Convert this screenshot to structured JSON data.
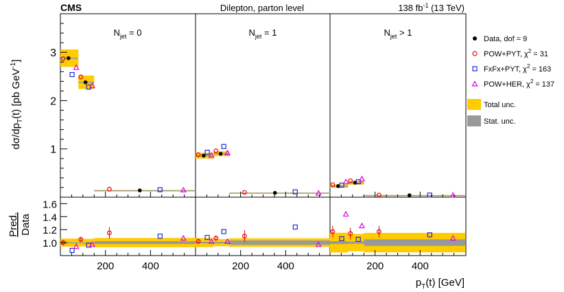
{
  "header": {
    "experiment": "CMS",
    "center": "Dilepton, parton level",
    "lumi_value": "138 fb",
    "lumi_exp": "-1",
    "energy": " (13 TeV)"
  },
  "axes": {
    "top_ylabel": "dσ/dp",
    "top_ylabel_sub": "T",
    "top_ylabel_mid": "(t) [pb GeV",
    "top_ylabel_sup": "-1",
    "top_ylabel_end": "]",
    "ratio_ylabel_num": "Pred.",
    "ratio_ylabel_den": "Data",
    "xlabel": "p",
    "xlabel_sub": "T",
    "xlabel_end": "(t) [GeV]"
  },
  "legend": {
    "data": "Data, dof = 9",
    "pow_pyt": "POW+PYT, χ",
    "pow_pyt_val": " = 31",
    "fxfx": "FxFx+PYT, χ",
    "fxfx_val": " = 163",
    "pow_her": "POW+HER, χ",
    "pow_her_val": " = 137",
    "chi_sup": "2",
    "total": "Total unc.",
    "stat": "Stat. unc."
  },
  "colors": {
    "total_unc": "#ffcc00",
    "stat_unc": "#999999",
    "pow_pyt": "#e8000b",
    "fxfx": "#1f2bd4",
    "pow_her": "#e000e8",
    "data": "#000000"
  },
  "chart_data": {
    "type": "scatter",
    "title": "Dilepton, parton level",
    "xlabel": "pT(t) [GeV]",
    "ylabel": "dσ/dpT(t) [pb GeV-1]",
    "ratio_ylabel": "Pred./Data",
    "xlim": [
      0,
      600
    ],
    "ylim": [
      0,
      3.8
    ],
    "ratio_ylim": [
      0.8,
      1.7
    ],
    "x_ticks": [
      200,
      400
    ],
    "y_ticks": [
      1,
      2,
      3
    ],
    "ratio_y_ticks": [
      1.0,
      1.2,
      1.4,
      1.6
    ],
    "bins": [
      [
        0,
        80
      ],
      [
        80,
        150
      ],
      [
        150,
        600
      ]
    ],
    "panels": [
      {
        "label": "N",
        "label_sub": "jet",
        "label_end": " = 0",
        "data": [
          2.88,
          2.38,
          0.14
        ],
        "total_unc": [
          0.18,
          0.14,
          0.01
        ],
        "stat_unc": [
          0.01,
          0.01,
          0.003
        ],
        "pow_pyt": [
          2.87,
          2.49,
          0.165
        ],
        "fxfx": [
          2.54,
          2.28,
          0.155
        ],
        "pow_her": [
          2.69,
          2.31,
          0.15
        ],
        "ratio_pow_pyt": [
          1.0,
          1.05,
          1.15
        ],
        "ratio_fxfx": [
          0.88,
          0.96,
          1.1
        ],
        "ratio_pow_her": [
          0.94,
          0.97,
          1.07
        ]
      },
      {
        "label": "N",
        "label_sub": "jet",
        "label_end": " = 1",
        "data": [
          0.86,
          0.9,
          0.09
        ],
        "total_unc": [
          0.06,
          0.05,
          0.006
        ],
        "stat_unc": [
          0.01,
          0.01,
          0.003
        ],
        "pow_pyt": [
          0.88,
          0.96,
          0.1
        ],
        "fxfx": [
          0.93,
          1.05,
          0.11
        ],
        "pow_her": [
          0.87,
          0.92,
          0.085
        ],
        "ratio_pow_pyt": [
          1.02,
          1.07,
          1.1
        ],
        "ratio_fxfx": [
          1.08,
          1.17,
          1.24
        ],
        "ratio_pow_her": [
          1.02,
          1.02,
          0.97
        ]
      },
      {
        "label": "N",
        "label_sub": "jet",
        "label_end": " > 1",
        "data": [
          0.23,
          0.3,
          0.04
        ],
        "total_unc": [
          0.035,
          0.04,
          0.006
        ],
        "stat_unc": [
          0.005,
          0.005,
          0.002
        ],
        "pow_pyt": [
          0.26,
          0.34,
          0.045
        ],
        "fxfx": [
          0.25,
          0.32,
          0.044
        ],
        "pow_her": [
          0.32,
          0.38,
          0.043
        ],
        "ratio_pow_pyt": [
          1.17,
          1.14,
          1.17
        ],
        "ratio_fxfx": [
          1.06,
          1.05,
          1.12
        ],
        "ratio_pow_her": [
          1.44,
          1.26,
          1.07
        ]
      }
    ]
  }
}
